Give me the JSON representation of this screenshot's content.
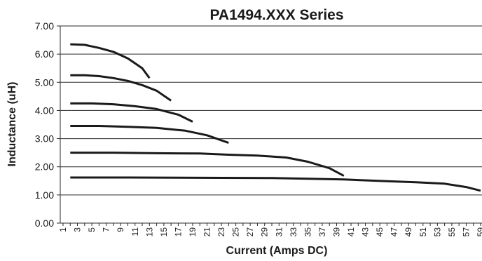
{
  "chart_data": {
    "type": "line",
    "title": "PA1494.XXX Series",
    "xlabel": "Current (Amps DC)",
    "ylabel": "Inductance (uH)",
    "ylim": [
      0,
      7
    ],
    "y_ticks": [
      "0.00",
      "1.00",
      "2.00",
      "3.00",
      "4.00",
      "5.00",
      "6.00",
      "7.00"
    ],
    "x_range": [
      1,
      59
    ],
    "x_ticks": [
      "1",
      "3",
      "5",
      "7",
      "9",
      "11",
      "13",
      "15",
      "17",
      "19",
      "21",
      "23",
      "25",
      "27",
      "29",
      "31",
      "33",
      "35",
      "37",
      "39",
      "41",
      "43",
      "45",
      "47",
      "49",
      "51",
      "53",
      "55",
      "57",
      "59"
    ],
    "grid": "horizontal",
    "legend": "none",
    "series": [
      {
        "x": [
          2,
          4,
          6,
          8,
          10,
          12,
          13
        ],
        "y": [
          6.35,
          6.33,
          6.22,
          6.08,
          5.85,
          5.5,
          5.15
        ]
      },
      {
        "x": [
          2,
          4,
          6,
          8,
          10,
          12,
          14,
          16
        ],
        "y": [
          5.25,
          5.25,
          5.22,
          5.15,
          5.05,
          4.9,
          4.7,
          4.35
        ]
      },
      {
        "x": [
          2,
          5,
          8,
          11,
          14,
          17,
          19
        ],
        "y": [
          4.25,
          4.25,
          4.22,
          4.15,
          4.05,
          3.85,
          3.6
        ]
      },
      {
        "x": [
          2,
          6,
          10,
          14,
          18,
          21,
          24
        ],
        "y": [
          3.45,
          3.45,
          3.42,
          3.38,
          3.28,
          3.12,
          2.85
        ]
      },
      {
        "x": [
          2,
          8,
          14,
          20,
          24,
          28,
          32,
          35,
          38,
          40
        ],
        "y": [
          2.5,
          2.5,
          2.48,
          2.47,
          2.43,
          2.4,
          2.33,
          2.18,
          1.95,
          1.68
        ]
      },
      {
        "x": [
          2,
          10,
          20,
          30,
          40,
          46,
          50,
          54,
          57,
          59
        ],
        "y": [
          1.62,
          1.62,
          1.61,
          1.6,
          1.55,
          1.49,
          1.45,
          1.4,
          1.28,
          1.15
        ]
      }
    ]
  }
}
